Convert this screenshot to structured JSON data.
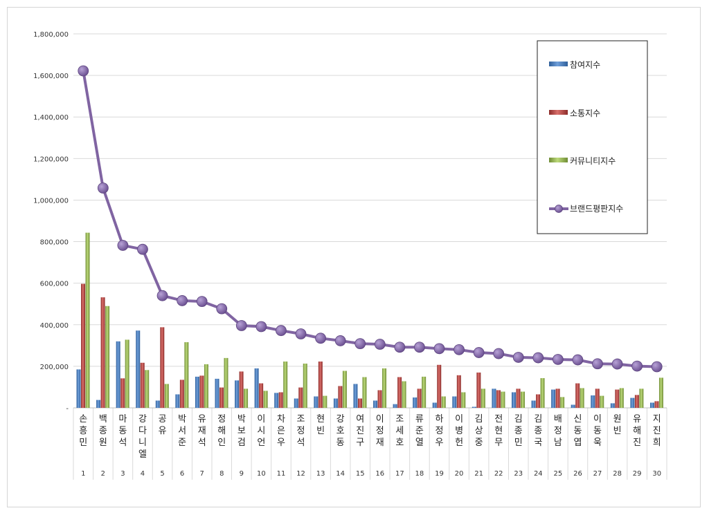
{
  "chart_data": {
    "type": "bar",
    "title": "",
    "xlabel": "",
    "ylabel": "",
    "ylim": [
      0,
      1800000
    ],
    "yticks": [
      "-",
      "200,000",
      "400,000",
      "600,000",
      "800,000",
      "1,000,000",
      "1,200,000",
      "1,400,000",
      "1,600,000",
      "1,800,000"
    ],
    "grid": true,
    "legend_position": "top-right",
    "categories": [
      "손흥민",
      "백종원",
      "마동석",
      "강다니엘",
      "공유",
      "박서준",
      "유재석",
      "정해인",
      "박보검",
      "이시언",
      "차은우",
      "조정석",
      "현빈",
      "강호동",
      "여진구",
      "이정재",
      "조세호",
      "류준열",
      "하정우",
      "이병헌",
      "김상중",
      "전현무",
      "김종민",
      "김종국",
      "배정남",
      "신동엽",
      "이동욱",
      "원빈",
      "유해진",
      "지진희"
    ],
    "ranks": [
      "1",
      "2",
      "3",
      "4",
      "5",
      "6",
      "7",
      "8",
      "9",
      "10",
      "11",
      "12",
      "13",
      "14",
      "15",
      "16",
      "17",
      "18",
      "19",
      "20",
      "21",
      "22",
      "23",
      "24",
      "25",
      "26",
      "27",
      "28",
      "29",
      "30"
    ],
    "series": [
      {
        "name": "참여지수",
        "kind": "bar",
        "color": "#4a7fc1",
        "values": [
          185000,
          38000,
          320000,
          372000,
          35000,
          65000,
          150000,
          140000,
          132000,
          190000,
          72000,
          45000,
          55000,
          45000,
          115000,
          35000,
          18000,
          50000,
          25000,
          55000,
          5000,
          92000,
          75000,
          35000,
          88000,
          15000,
          60000,
          22000,
          48000,
          25000
        ]
      },
      {
        "name": "소통지수",
        "kind": "bar",
        "color": "#c0504d",
        "values": [
          597000,
          532000,
          142000,
          217000,
          388000,
          135000,
          155000,
          98000,
          175000,
          118000,
          75000,
          98000,
          223000,
          105000,
          45000,
          85000,
          148000,
          92000,
          207000,
          157000,
          170000,
          85000,
          92000,
          65000,
          92000,
          118000,
          92000,
          88000,
          62000,
          32000
        ]
      },
      {
        "name": "커뮤니티지수",
        "kind": "bar",
        "color": "#9bbb59",
        "values": [
          843000,
          490000,
          328000,
          182000,
          115000,
          316000,
          210000,
          240000,
          92000,
          82000,
          223000,
          213000,
          58000,
          178000,
          148000,
          190000,
          128000,
          150000,
          55000,
          75000,
          92000,
          78000,
          78000,
          143000,
          52000,
          95000,
          58000,
          95000,
          92000,
          145000
        ]
      },
      {
        "name": "브랜드평판지수",
        "kind": "line",
        "color": "#8064a2",
        "values": [
          1622000,
          1058000,
          782000,
          763000,
          540000,
          516000,
          512000,
          477000,
          396000,
          391000,
          372000,
          356000,
          335000,
          323000,
          309000,
          306000,
          292000,
          292000,
          285000,
          280000,
          266000,
          261000,
          243000,
          241000,
          233000,
          231000,
          212000,
          211000,
          201000,
          198000
        ]
      }
    ]
  }
}
